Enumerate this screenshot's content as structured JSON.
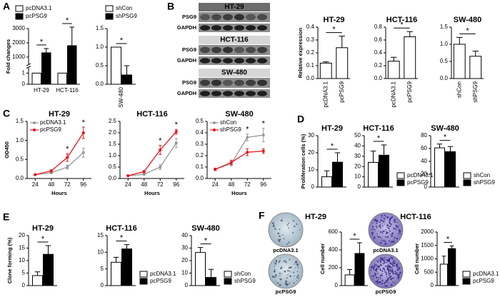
{
  "chart_data": [
    {
      "type": "bar",
      "panel": "A",
      "ylabel": "Fold changes",
      "categories": [
        "HT-29",
        "HCT-116"
      ],
      "series": [
        {
          "name": "pcDNA3.1",
          "color": "#ffffff",
          "values": [
            1,
            1
          ]
        },
        {
          "name": "pcPSG9",
          "color": "#000000",
          "values": [
            1300,
            1800
          ],
          "errors": [
            300,
            1300
          ]
        }
      ],
      "ylim": [
        0,
        3000
      ],
      "ybreak": [
        1.5,
        500
      ],
      "yticks": [
        0,
        1,
        1000,
        2000,
        3000
      ],
      "legend": "top",
      "stars": [
        "*",
        "*"
      ]
    },
    {
      "type": "bar",
      "categories": [
        "SW-480"
      ],
      "series": [
        {
          "name": "shCon",
          "color": "#ffffff",
          "values": [
            1
          ]
        },
        {
          "name": "shPSG9",
          "color": "#000000",
          "values": [
            0.25
          ],
          "errors": [
            0.25
          ]
        }
      ],
      "ylim": [
        0,
        1.5
      ],
      "yticks": [
        {
          "value": 0,
          "label": "0.0"
        },
        0.5,
        {
          "value": 1,
          "label": "1.0"
        },
        1.5
      ],
      "legend": "top",
      "star": "*"
    },
    {
      "type": "bar",
      "title": "HT-29",
      "ylabel": "Relative expression",
      "categories": [
        "pcDNA3.1",
        "pcPSG9"
      ],
      "series": [
        {
          "color": "#ffffff",
          "values": [
            0.12,
            0.24
          ],
          "errors": [
            0.01,
            0.09
          ]
        }
      ],
      "ylim": [
        0,
        0.4
      ],
      "yticks": [
        {
          "value": 0,
          "label": "0.0"
        },
        0.1,
        0.2,
        0.3,
        0.4
      ],
      "star": "*"
    },
    {
      "type": "bar",
      "title": "HCT-116",
      "categories": [
        "pcDNA3.1",
        "pcPSG9"
      ],
      "series": [
        {
          "color": "#ffffff",
          "values": [
            0.27,
            0.65
          ],
          "errors": [
            0.06,
            0.08
          ]
        }
      ],
      "ylim": [
        0,
        0.8
      ],
      "yticks": [
        {
          "value": 0,
          "label": "0.0"
        },
        0.2,
        0.4,
        0.6,
        0.8
      ],
      "star": "*"
    },
    {
      "type": "bar",
      "title": "SW-480",
      "categories": [
        "shCon",
        "shPSG9"
      ],
      "series": [
        {
          "color": "#ffffff",
          "values": [
            1.0,
            0.65
          ],
          "errors": [
            0.2,
            0.15
          ]
        }
      ],
      "ylim": [
        0,
        1.5
      ],
      "yticks": [
        {
          "value": 0,
          "label": "0.0"
        },
        0.5,
        {
          "value": 1,
          "label": "1.0"
        },
        1.5
      ],
      "star": "*"
    },
    {
      "type": "line",
      "panel": "C",
      "title": "HT-29",
      "ylabel": "OD450",
      "xlabel": "Hours",
      "x": [
        24,
        48,
        72,
        96
      ],
      "xlim": [
        12,
        108
      ],
      "xticks": [
        24,
        48,
        72,
        96
      ],
      "series": [
        {
          "name": "pcDNA3.1",
          "color": "#999999",
          "values": [
            0.1,
            0.15,
            0.3,
            0.68
          ],
          "errors": [
            0.01,
            0.02,
            0.05,
            0.12
          ]
        },
        {
          "name": "pcPSG9",
          "color": "#e8141c",
          "values": [
            0.1,
            0.2,
            0.55,
            1.2
          ],
          "errors": [
            0.01,
            0.03,
            0.1,
            0.15
          ]
        }
      ],
      "ylim": [
        0,
        1.5
      ],
      "yticks": [
        {
          "value": 0,
          "label": "0.0"
        },
        0.5,
        {
          "value": 1,
          "label": "1.0"
        },
        1.5
      ],
      "legend": "upper left",
      "stars": [
        null,
        null,
        "*",
        "*"
      ]
    },
    {
      "type": "line",
      "title": "HCT-116",
      "xlabel": "Hours",
      "x": [
        24,
        48,
        72,
        96
      ],
      "xlim": [
        12,
        108
      ],
      "xticks": [
        24,
        48,
        72,
        96
      ],
      "series": [
        {
          "color": "#999999",
          "values": [
            0.12,
            0.18,
            0.5,
            1.55
          ],
          "errors": [
            0.02,
            0.03,
            0.1,
            0.2
          ]
        },
        {
          "color": "#e8141c",
          "values": [
            0.12,
            0.3,
            1.25,
            2.05
          ],
          "errors": [
            0.02,
            0.05,
            0.2,
            0.1
          ]
        }
      ],
      "ylim": [
        0,
        2.5
      ],
      "yticks": [
        {
          "value": 0,
          "label": "0.0"
        },
        0.5,
        {
          "value": 1,
          "label": "1.0"
        },
        1.5,
        {
          "value": 2,
          "label": "2.0"
        },
        2.5
      ],
      "stars": [
        null,
        null,
        "*",
        "*"
      ]
    },
    {
      "type": "line",
      "title": "SW-480",
      "xlabel": "Hours",
      "x": [
        24,
        48,
        72,
        96
      ],
      "xlim": [
        12,
        108
      ],
      "xticks": [
        24,
        48,
        72,
        96
      ],
      "series": [
        {
          "name": "shCon",
          "color": "#999999",
          "values": [
            0.08,
            0.13,
            0.36,
            0.38
          ],
          "errors": [
            0.01,
            0.02,
            0.03,
            0.06
          ]
        },
        {
          "name": "shPSG9",
          "color": "#e8141c",
          "values": [
            0.08,
            0.14,
            0.23,
            0.24
          ],
          "errors": [
            0.01,
            0.02,
            0.03,
            0.02
          ]
        }
      ],
      "ylim": [
        0,
        0.5
      ],
      "yticks": [
        {
          "value": 0,
          "label": "0.0"
        },
        0.1,
        0.2,
        0.3,
        0.4,
        0.5
      ],
      "legend": "upper left",
      "stars": [
        null,
        null,
        "*",
        "*"
      ]
    },
    {
      "type": "bar",
      "panel": "D",
      "title": "HT-29",
      "ylabel": "Proliferation cells (%)",
      "categories": [
        null
      ],
      "series": [
        {
          "color": "#ffffff",
          "values": [
            6
          ],
          "errors": [
            3.5
          ]
        },
        {
          "color": "#000000",
          "values": [
            14.5
          ],
          "errors": [
            5.5
          ]
        }
      ],
      "ylim": [
        0,
        30
      ],
      "yticks": [
        0,
        10,
        20,
        30
      ],
      "star": "*"
    },
    {
      "type": "bar",
      "title": "HCT-116",
      "categories": [
        null
      ],
      "series": [
        {
          "name": "pcDNA3.1",
          "color": "#ffffff",
          "values": [
            24
          ],
          "errors": [
            11
          ]
        },
        {
          "name": "pcPSG9",
          "color": "#000000",
          "values": [
            31
          ],
          "errors": [
            10
          ]
        }
      ],
      "ylim": [
        0,
        50
      ],
      "yticks": [
        0,
        10,
        20,
        30,
        40,
        50
      ],
      "legend": "right",
      "star": "*"
    },
    {
      "type": "bar",
      "title": "SW-480",
      "categories": [
        null
      ],
      "series": [
        {
          "name": "shCon",
          "color": "#ffffff",
          "values": [
            61
          ],
          "errors": [
            6
          ]
        },
        {
          "name": "shPSG9",
          "color": "#000000",
          "values": [
            55
          ],
          "errors": [
            8
          ]
        }
      ],
      "ylim": [
        0,
        80
      ],
      "yticks": [
        0,
        20,
        40,
        60,
        80
      ],
      "legend": "right",
      "star": "*"
    },
    {
      "type": "bar",
      "panel": "E",
      "title": "HT-29",
      "ylabel": "Clone forming (%)",
      "categories": [
        null
      ],
      "series": [
        {
          "color": "#ffffff",
          "values": [
            4
          ],
          "errors": [
            1.5
          ]
        },
        {
          "color": "#000000",
          "values": [
            12.5
          ],
          "errors": [
            3.5
          ]
        }
      ],
      "ylim": [
        0,
        20
      ],
      "yticks": [
        0,
        5,
        10,
        15,
        20
      ],
      "star": "*"
    },
    {
      "type": "bar",
      "title": "HCT-116",
      "categories": [
        null
      ],
      "series": [
        {
          "name": "pcDNA3.1",
          "color": "#ffffff",
          "values": [
            7
          ],
          "errors": [
            1.5
          ]
        },
        {
          "name": "pcPSG9",
          "color": "#000000",
          "values": [
            11
          ],
          "errors": [
            1.3
          ]
        }
      ],
      "ylim": [
        0,
        15
      ],
      "yticks": [
        0,
        5,
        10,
        15
      ],
      "legend": "right",
      "star": "*"
    },
    {
      "type": "bar",
      "title": "SW-480",
      "categories": [
        null
      ],
      "series": [
        {
          "name": "shCon",
          "color": "#ffffff",
          "values": [
            26.5
          ],
          "errors": [
            4
          ]
        },
        {
          "name": "shPSG9",
          "color": "#000000",
          "values": [
            6.5
          ],
          "errors": [
            6.5
          ]
        }
      ],
      "ylim": [
        0,
        40
      ],
      "yticks": [
        0,
        10,
        20,
        30,
        40
      ],
      "legend": "right",
      "star": "*"
    },
    {
      "type": "bar",
      "ylabel": "Cell number",
      "categories": [
        null
      ],
      "series": [
        {
          "color": "#ffffff",
          "values": [
            120
          ],
          "errors": [
            60
          ]
        },
        {
          "color": "#000000",
          "values": [
            360
          ],
          "errors": [
            120
          ]
        }
      ],
      "ylim": [
        0,
        600
      ],
      "yticks": [
        0,
        200,
        400,
        600
      ],
      "star": "*"
    },
    {
      "type": "bar",
      "ylabel": "Cell number",
      "categories": [
        null
      ],
      "series": [
        {
          "name": "pcDNA3.1",
          "color": "#ffffff",
          "values": [
            800
          ],
          "errors": [
            300
          ]
        },
        {
          "name": "pcPSG9",
          "color": "#000000",
          "values": [
            1380
          ],
          "errors": [
            100
          ]
        }
      ],
      "ylim": [
        0,
        2000
      ],
      "yticks": [
        0,
        500,
        1000,
        1500,
        2000
      ],
      "legend": "right",
      "star": "*"
    }
  ],
  "blots": {
    "panel": "B",
    "groups": [
      {
        "title": "HT-29",
        "rows": [
          "PSG9",
          "GAPDH"
        ]
      },
      {
        "title": "HCT-116",
        "rows": [
          "PSG9",
          "GAPDH"
        ]
      },
      {
        "title": "SW-480",
        "rows": [
          "PSG9",
          "GAPDH"
        ]
      }
    ]
  },
  "colonies": {
    "panel": "F",
    "groups": [
      {
        "title": "HT-29",
        "labels": [
          "pcDNA3.1",
          "pcPSG9"
        ]
      },
      {
        "title": "HCT-116",
        "labels": [
          "pcDNA3.1",
          "pcPSG9"
        ]
      }
    ]
  }
}
